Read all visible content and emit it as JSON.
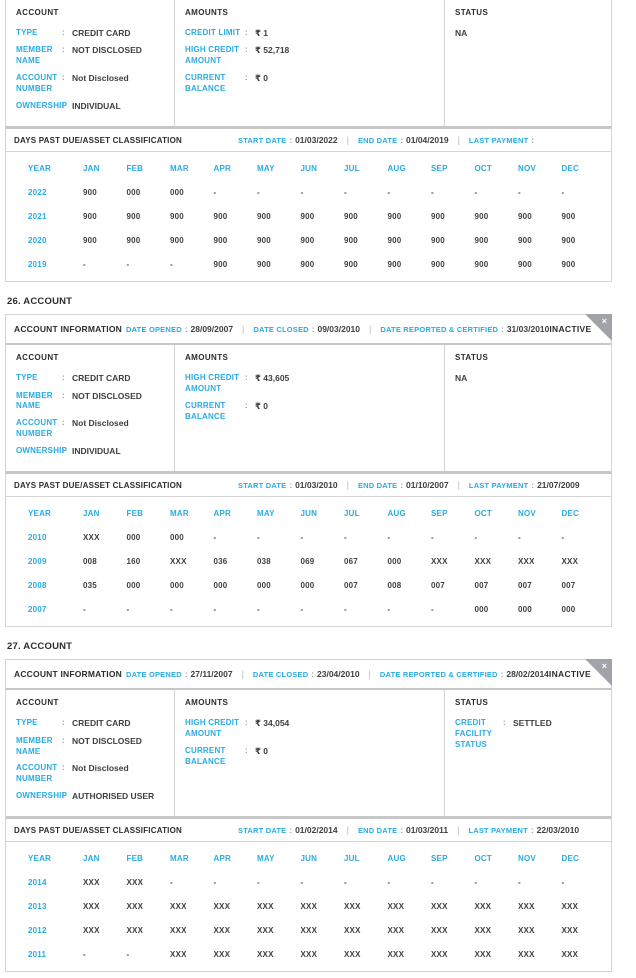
{
  "colors": {
    "accent": "#29abe2",
    "dark": "#3f3e41",
    "ribbon": "#a0a3a7"
  },
  "ui": {
    "account_info_label": "ACCOUNT INFORMATION",
    "date_opened_label": "DATE OPENED",
    "date_closed_label": "DATE CLOSED",
    "date_reported_label": "DATE REPORTED & CERTIFIED",
    "account_heading": "ACCOUNT",
    "amounts_heading": "AMOUNTS",
    "status_heading": "STATUS",
    "dpd_heading": "DAYS PAST DUE/ASSET CLASSIFICATION",
    "start_date_label": "START DATE",
    "end_date_label": "END DATE",
    "last_payment_label": "LAST PAYMENT",
    "year_label": "YEAR",
    "months": [
      "JAN",
      "FEB",
      "MAR",
      "APR",
      "MAY",
      "JUN",
      "JUL",
      "AUG",
      "SEP",
      "OCT",
      "NOV",
      "DEC"
    ],
    "close_icon": "×",
    "pipe": "|",
    "colon": ":"
  },
  "accounts": [
    {
      "section_title": "",
      "header": null,
      "columns": {
        "account": [
          {
            "label": "TYPE",
            "value": "CREDIT CARD"
          },
          {
            "label": "MEMBER NAME",
            "value": "NOT DISCLOSED"
          },
          {
            "label": "ACCOUNT NUMBER",
            "value": "Not Disclosed"
          },
          {
            "label": "OWNERSHIP",
            "value": "INDIVIDUAL"
          }
        ],
        "amounts": [
          {
            "label": "CREDIT LIMIT",
            "value": "₹ 1"
          },
          {
            "label": "HIGH CREDIT AMOUNT",
            "value": "₹ 52,718"
          },
          {
            "label": "CURRENT BALANCE",
            "value": "₹ 0"
          }
        ],
        "status": [
          {
            "label": "",
            "value": "NA"
          }
        ]
      },
      "dpd": {
        "start_date": "01/03/2022",
        "end_date": "01/04/2019",
        "last_payment": "",
        "rows": [
          {
            "year": "2022",
            "values": [
              "900",
              "000",
              "000",
              "-",
              "-",
              "-",
              "-",
              "-",
              "-",
              "-",
              "-",
              "-"
            ]
          },
          {
            "year": "2021",
            "values": [
              "900",
              "900",
              "900",
              "900",
              "900",
              "900",
              "900",
              "900",
              "900",
              "900",
              "900",
              "900"
            ]
          },
          {
            "year": "2020",
            "values": [
              "900",
              "900",
              "900",
              "900",
              "900",
              "900",
              "900",
              "900",
              "900",
              "900",
              "900",
              "900"
            ]
          },
          {
            "year": "2019",
            "values": [
              "-",
              "-",
              "-",
              "900",
              "900",
              "900",
              "900",
              "900",
              "900",
              "900",
              "900",
              "900"
            ]
          }
        ]
      }
    },
    {
      "section_title": "26. ACCOUNT",
      "header": {
        "date_opened": "28/09/2007",
        "date_closed": "09/03/2010",
        "date_reported": "31/03/2010",
        "state": "INACTIVE"
      },
      "columns": {
        "account": [
          {
            "label": "TYPE",
            "value": "CREDIT CARD"
          },
          {
            "label": "MEMBER NAME",
            "value": "NOT DISCLOSED"
          },
          {
            "label": "ACCOUNT NUMBER",
            "value": "Not Disclosed"
          },
          {
            "label": "OWNERSHIP",
            "value": "INDIVIDUAL"
          }
        ],
        "amounts": [
          {
            "label": "HIGH CREDIT AMOUNT",
            "value": "₹ 43,605"
          },
          {
            "label": "CURRENT BALANCE",
            "value": "₹ 0"
          }
        ],
        "status": [
          {
            "label": "",
            "value": "NA"
          }
        ]
      },
      "dpd": {
        "start_date": "01/03/2010",
        "end_date": "01/10/2007",
        "last_payment": "21/07/2009",
        "rows": [
          {
            "year": "2010",
            "values": [
              "XXX",
              "000",
              "000",
              "-",
              "-",
              "-",
              "-",
              "-",
              "-",
              "-",
              "-",
              "-"
            ]
          },
          {
            "year": "2009",
            "values": [
              "008",
              "160",
              "XXX",
              "036",
              "038",
              "069",
              "067",
              "000",
              "XXX",
              "XXX",
              "XXX",
              "XXX"
            ]
          },
          {
            "year": "2008",
            "values": [
              "035",
              "000",
              "000",
              "000",
              "000",
              "000",
              "007",
              "008",
              "007",
              "007",
              "007",
              "007"
            ]
          },
          {
            "year": "2007",
            "values": [
              "-",
              "-",
              "-",
              "-",
              "-",
              "-",
              "-",
              "-",
              "-",
              "000",
              "000",
              "000"
            ]
          }
        ]
      }
    },
    {
      "section_title": "27. ACCOUNT",
      "header": {
        "date_opened": "27/11/2007",
        "date_closed": "23/04/2010",
        "date_reported": "28/02/2014",
        "state": "INACTIVE"
      },
      "columns": {
        "account": [
          {
            "label": "TYPE",
            "value": "CREDIT CARD"
          },
          {
            "label": "MEMBER NAME",
            "value": "NOT DISCLOSED"
          },
          {
            "label": "ACCOUNT NUMBER",
            "value": "Not Disclosed"
          },
          {
            "label": "OWNERSHIP",
            "value": "AUTHORISED USER"
          }
        ],
        "amounts": [
          {
            "label": "HIGH CREDIT AMOUNT",
            "value": "₹ 34,054"
          },
          {
            "label": "CURRENT BALANCE",
            "value": "₹ 0"
          }
        ],
        "status": [
          {
            "label": "CREDIT FACILITY STATUS",
            "value": "SETTLED"
          }
        ]
      },
      "dpd": {
        "start_date": "01/02/2014",
        "end_date": "01/03/2011",
        "last_payment": "22/03/2010",
        "rows": [
          {
            "year": "2014",
            "values": [
              "XXX",
              "XXX",
              "-",
              "-",
              "-",
              "-",
              "-",
              "-",
              "-",
              "-",
              "-",
              "-"
            ]
          },
          {
            "year": "2013",
            "values": [
              "XXX",
              "XXX",
              "XXX",
              "XXX",
              "XXX",
              "XXX",
              "XXX",
              "XXX",
              "XXX",
              "XXX",
              "XXX",
              "XXX"
            ]
          },
          {
            "year": "2012",
            "values": [
              "XXX",
              "XXX",
              "XXX",
              "XXX",
              "XXX",
              "XXX",
              "XXX",
              "XXX",
              "XXX",
              "XXX",
              "XXX",
              "XXX"
            ]
          },
          {
            "year": "2011",
            "values": [
              "-",
              "-",
              "XXX",
              "XXX",
              "XXX",
              "XXX",
              "XXX",
              "XXX",
              "XXX",
              "XXX",
              "XXX",
              "XXX"
            ]
          }
        ]
      }
    }
  ]
}
